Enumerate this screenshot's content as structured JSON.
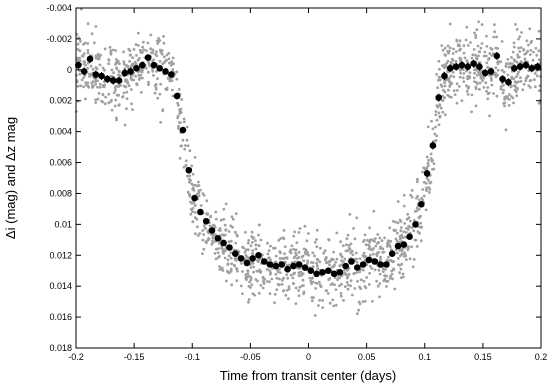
{
  "chart_data": {
    "type": "scatter",
    "title": "",
    "xlabel": "Time from transit center (days)",
    "ylabel": "Δi (mag) and Δz mag",
    "xlim": [
      -0.2,
      0.2
    ],
    "ylim": [
      -0.004,
      0.018
    ],
    "y_inverted": true,
    "grid": false,
    "legend": "none",
    "x_ticks": [
      "-0.2",
      "-0.15",
      "-0.1",
      "-0.05",
      "0",
      "0.05",
      "0.1",
      "0.15",
      "0.2"
    ],
    "y_ticks": [
      "-0.004",
      "-0.002",
      "0",
      "0.002",
      "0.004",
      "0.006",
      "0.008",
      "0.01",
      "0.012",
      "0.014",
      "0.016",
      "0.018"
    ],
    "colors": {
      "raw": "#a0a0a0",
      "binned": "#000000"
    },
    "binned_series": {
      "x": [
        -0.198,
        -0.193,
        -0.188,
        -0.183,
        -0.178,
        -0.173,
        -0.168,
        -0.163,
        -0.158,
        -0.153,
        -0.148,
        -0.143,
        -0.138,
        -0.133,
        -0.128,
        -0.123,
        -0.118,
        -0.113,
        -0.108,
        -0.103,
        -0.098,
        -0.093,
        -0.088,
        -0.083,
        -0.078,
        -0.073,
        -0.068,
        -0.063,
        -0.058,
        -0.053,
        -0.048,
        -0.043,
        -0.038,
        -0.033,
        -0.028,
        -0.023,
        -0.018,
        -0.013,
        -0.008,
        -0.003,
        0.002,
        0.007,
        0.012,
        0.017,
        0.022,
        0.027,
        0.032,
        0.037,
        0.042,
        0.047,
        0.052,
        0.057,
        0.062,
        0.067,
        0.072,
        0.077,
        0.082,
        0.087,
        0.092,
        0.097,
        0.102,
        0.107,
        0.112,
        0.117,
        0.122,
        0.127,
        0.132,
        0.137,
        0.142,
        0.147,
        0.152,
        0.157,
        0.162,
        0.167,
        0.172,
        0.177,
        0.182,
        0.187,
        0.192,
        0.197
      ],
      "y": [
        -0.0003,
        0.0001,
        -0.0007,
        0.0003,
        0.0004,
        0.0006,
        0.0007,
        0.0007,
        0.0002,
        0.0001,
        -0.0001,
        -0.0003,
        -0.0008,
        -0.0003,
        -0.0001,
        0.0001,
        0.0003,
        0.0017,
        0.0039,
        0.0065,
        0.0083,
        0.0092,
        0.0098,
        0.0104,
        0.0109,
        0.0112,
        0.0115,
        0.0119,
        0.0122,
        0.0125,
        0.0122,
        0.012,
        0.0124,
        0.0126,
        0.0127,
        0.0126,
        0.0129,
        0.0127,
        0.0126,
        0.0128,
        0.013,
        0.0132,
        0.0131,
        0.013,
        0.0132,
        0.0131,
        0.0127,
        0.0124,
        0.0128,
        0.0126,
        0.0123,
        0.0124,
        0.0126,
        0.0126,
        0.0119,
        0.0114,
        0.0113,
        0.0108,
        0.01,
        0.0087,
        0.0067,
        0.0049,
        0.0018,
        0.0004,
        -0.0001,
        -0.0002,
        -0.0003,
        -0.0002,
        -0.0004,
        -0.0002,
        0.0002,
        0.0001,
        -0.0009,
        0.0006,
        0.0008,
        -0.0001,
        -0.0002,
        -0.0003,
        -0.0001,
        -0.0002
      ]
    }
  }
}
